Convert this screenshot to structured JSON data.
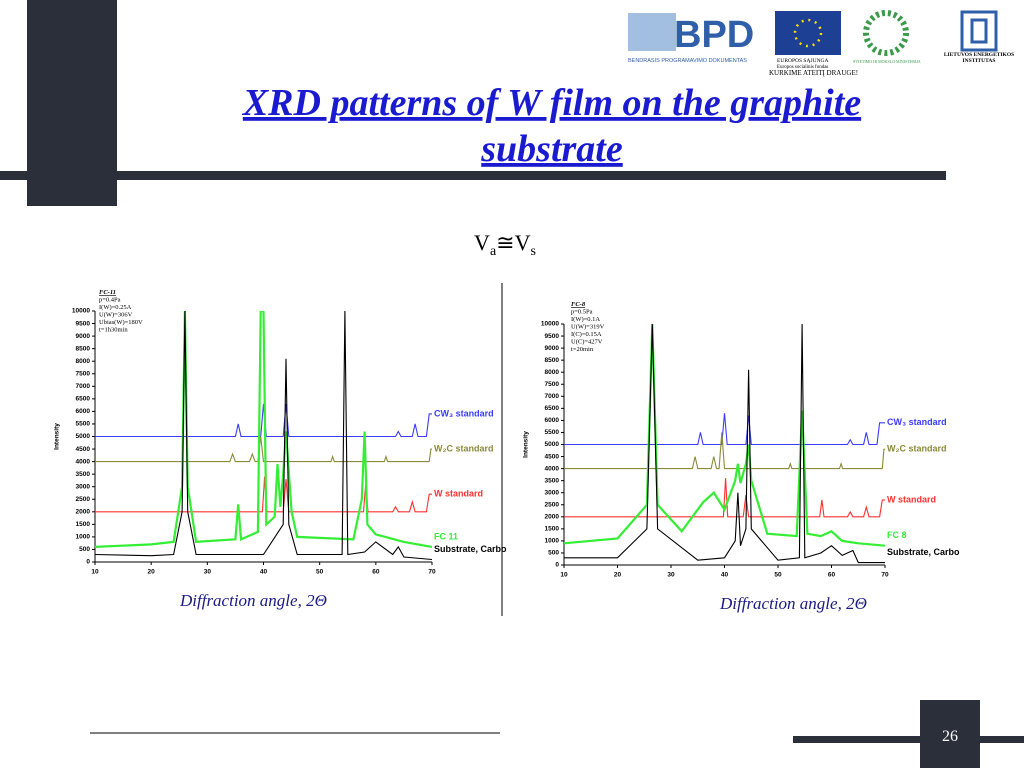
{
  "header": {
    "title": "XRD patterns of W film on the graphite substrate",
    "formula": [
      "V",
      "a",
      "≅V",
      "s"
    ],
    "logos": {
      "bpd": "BPD",
      "bpd_caption": "BENDRASIS PROGRAMAVIMO DOKUMENTAS",
      "eu_1": "EUROPOS SĄJUNGA",
      "eu_2": "Europos socialinis fondas",
      "slogan": "KURKIME ATEITĮ DRAUGE!",
      "ministry": "ŠVIETIMO IR MOKSLO MINISTERIJA",
      "lei_1": "LIETUVOS ENERGETIKOS",
      "lei_2": "INSTITUTAS"
    }
  },
  "page_number": "26",
  "chart_data": [
    {
      "type": "line",
      "xlabel": "Diffraction angle, 2Θ",
      "ylabel": "Intensity",
      "annotations": [
        "FC-11",
        "p=0.4Pa",
        "I(W)=0.25A",
        "U(W)=306V",
        "Ubias(W)=180V",
        "t=1h30min"
      ],
      "xlim": [
        10,
        70
      ],
      "ylim": [
        0,
        10000
      ],
      "xticks": [
        10,
        20,
        30,
        40,
        50,
        60,
        70
      ],
      "yticks": [
        0,
        500,
        1000,
        1500,
        2000,
        2500,
        3000,
        3500,
        4000,
        4500,
        5000,
        5500,
        6000,
        6500,
        7000,
        7500,
        8000,
        8500,
        9000,
        9500,
        10000
      ],
      "series": [
        {
          "name": "CW₃ standard",
          "color": "#3b3bff",
          "x": [
            10,
            35,
            35.5,
            36,
            39.5,
            40,
            40.5,
            43.5,
            44,
            44.5,
            63.5,
            64,
            64.5,
            66.5,
            67,
            67.5,
            69,
            69.5,
            70
          ],
          "values": [
            5000,
            5000,
            5500,
            5000,
            5000,
            6300,
            5000,
            5000,
            6300,
            5000,
            5000,
            5200,
            5000,
            5000,
            5500,
            5000,
            5000,
            5900,
            5900
          ]
        },
        {
          "name": "W₂C standard",
          "color": "#8a8a3a",
          "x": [
            10,
            34,
            34.5,
            35,
            37.5,
            38,
            38.5,
            39,
            39.5,
            40,
            52,
            52.3,
            52.6,
            61.5,
            61.8,
            62.1,
            69.5,
            69.8,
            70
          ],
          "values": [
            4000,
            4000,
            4300,
            4000,
            4000,
            4300,
            4000,
            4000,
            5000,
            4000,
            4000,
            4200,
            4000,
            4000,
            4200,
            4000,
            4000,
            4500,
            4500
          ]
        },
        {
          "name": "W standard",
          "color": "#ff3030",
          "x": [
            10,
            39.8,
            40.2,
            40.6,
            43.5,
            44,
            44.5,
            57.8,
            58.2,
            58.6,
            63,
            63.5,
            64,
            66,
            66.5,
            67,
            69,
            69.5,
            70
          ],
          "values": [
            2000,
            2000,
            3400,
            2000,
            2000,
            3300,
            2000,
            2000,
            3100,
            2000,
            2000,
            2200,
            2000,
            2000,
            2400,
            2000,
            2000,
            2700,
            2700
          ]
        },
        {
          "name": "FC 11",
          "color": "#33ee33",
          "x": [
            10,
            20,
            24,
            25.5,
            26,
            26.5,
            28,
            35,
            35.5,
            36,
            39,
            39.5,
            40,
            40.5,
            42,
            42.5,
            43,
            43.5,
            44,
            45,
            46,
            56,
            57.5,
            58,
            58.5,
            60,
            65,
            70
          ],
          "values": [
            600,
            700,
            800,
            3000,
            10000,
            3000,
            800,
            900,
            2300,
            900,
            1200,
            10000,
            10000,
            1500,
            1800,
            3900,
            2200,
            3500,
            5200,
            2000,
            1000,
            900,
            2500,
            5200,
            1500,
            1100,
            800,
            600
          ]
        },
        {
          "name": "Substrate, Carbo",
          "color": "#000000",
          "x": [
            10,
            20,
            24,
            25.5,
            26,
            26.5,
            28,
            35,
            40,
            43.5,
            44,
            44.5,
            46,
            54,
            54.5,
            55,
            58,
            60,
            63,
            64,
            65,
            70
          ],
          "values": [
            300,
            250,
            300,
            2000,
            10000,
            2000,
            300,
            300,
            300,
            1500,
            8100,
            1500,
            300,
            300,
            10000,
            300,
            400,
            800,
            300,
            600,
            200,
            100
          ]
        }
      ]
    },
    {
      "type": "line",
      "xlabel": "Diffraction angle, 2Θ",
      "ylabel": "Intensity",
      "annotations": [
        "FC-8",
        "p=0.5Pa",
        "I(W)=0.1A",
        "U(W)=319V",
        "I(C)=0.15A",
        "U(C)=427V",
        "t=20min"
      ],
      "xlim": [
        10,
        70
      ],
      "ylim": [
        0,
        10000
      ],
      "xticks": [
        10,
        20,
        30,
        40,
        50,
        60,
        70
      ],
      "yticks": [
        0,
        500,
        1000,
        1500,
        2000,
        2500,
        3000,
        3500,
        4000,
        4500,
        5000,
        5500,
        6000,
        6500,
        7000,
        7500,
        8000,
        8500,
        9000,
        9500,
        10000
      ],
      "series": [
        {
          "name": "CW₃ standard",
          "color": "#3b3bff",
          "x": [
            10,
            35,
            35.5,
            36,
            39.5,
            40,
            40.5,
            44,
            44.5,
            45,
            63,
            63.5,
            64,
            66,
            66.5,
            67,
            68.5,
            69,
            70
          ],
          "values": [
            5000,
            5000,
            5500,
            5000,
            5000,
            6300,
            5000,
            5000,
            6200,
            5000,
            5000,
            5200,
            5000,
            5000,
            5500,
            5000,
            5000,
            5900,
            5900
          ]
        },
        {
          "name": "W₂C standard",
          "color": "#8a8a3a",
          "x": [
            10,
            34,
            34.5,
            35,
            37.5,
            38,
            38.5,
            39,
            39.5,
            40,
            52,
            52.3,
            52.6,
            61.5,
            61.8,
            62.1,
            69.5,
            69.8,
            70
          ],
          "values": [
            4000,
            4000,
            4500,
            4000,
            4000,
            4500,
            4000,
            4000,
            5500,
            4000,
            4000,
            4200,
            4000,
            4000,
            4200,
            4000,
            4000,
            4800,
            4800
          ]
        },
        {
          "name": "W standard",
          "color": "#ff3030",
          "x": [
            10,
            39.8,
            40.2,
            40.6,
            43.5,
            44,
            44.5,
            57.8,
            58.2,
            58.6,
            63,
            63.5,
            64,
            66,
            66.5,
            67,
            69,
            69.5,
            70
          ],
          "values": [
            2000,
            2000,
            3600,
            2000,
            2000,
            2900,
            2000,
            2000,
            2700,
            2000,
            2000,
            2200,
            2000,
            2000,
            2400,
            2000,
            2000,
            2700,
            2700
          ]
        },
        {
          "name": "FC 8",
          "color": "#33ee33",
          "x": [
            10,
            20,
            25.5,
            26.5,
            27.5,
            32,
            36,
            38,
            40,
            42,
            42.5,
            43,
            44,
            44.5,
            45,
            48,
            53.5,
            54.5,
            55.5,
            58,
            60,
            62,
            65,
            70
          ],
          "values": [
            900,
            1100,
            2500,
            10000,
            2500,
            1400,
            2600,
            3000,
            2300,
            3500,
            4200,
            3400,
            4200,
            5000,
            3500,
            1300,
            1200,
            6400,
            1300,
            1200,
            1400,
            1000,
            900,
            800
          ]
        },
        {
          "name": "Substrate, Carbo",
          "color": "#000000",
          "x": [
            10,
            20,
            25.5,
            26.5,
            27.5,
            35,
            40,
            42,
            42.5,
            43,
            44,
            44.5,
            45,
            50,
            54,
            54.5,
            55,
            58,
            60,
            62,
            64,
            65,
            70
          ],
          "values": [
            300,
            300,
            1500,
            10000,
            1500,
            200,
            300,
            1000,
            3000,
            800,
            1500,
            8100,
            1500,
            200,
            300,
            10000,
            300,
            500,
            800,
            400,
            600,
            100,
            100
          ]
        }
      ]
    }
  ]
}
